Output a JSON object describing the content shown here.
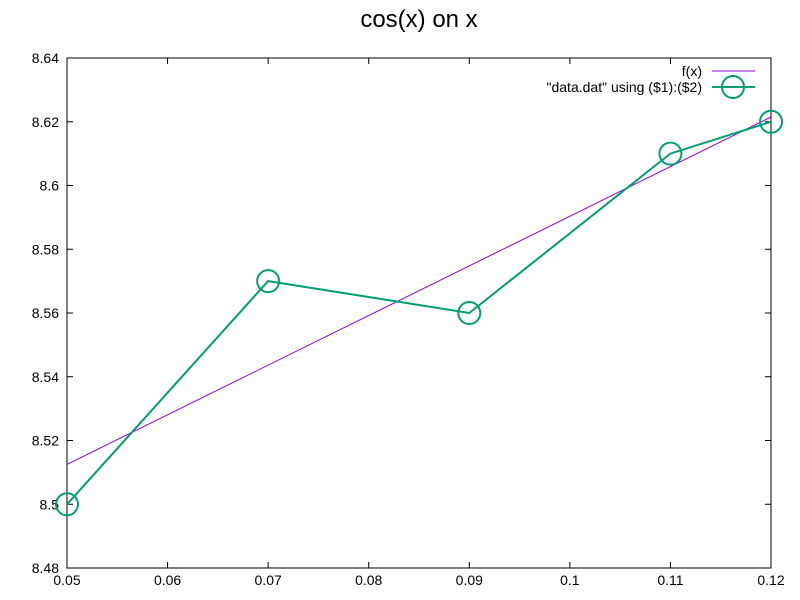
{
  "chart_data": {
    "type": "line",
    "title": "cos(x) on x",
    "xlabel": "",
    "ylabel": "",
    "xlim": [
      0.05,
      0.12
    ],
    "ylim": [
      8.48,
      8.64
    ],
    "xticks": [
      "0.05",
      "0.06",
      "0.07",
      "0.08",
      "0.09",
      "0.1",
      "0.11",
      "0.12"
    ],
    "yticks": [
      "8.48",
      "8.5",
      "8.52",
      "8.54",
      "8.56",
      "8.58",
      "8.6",
      "8.62",
      "8.64"
    ],
    "grid": false,
    "legend_position": "top-right",
    "series": [
      {
        "name": "f(x)",
        "kind": "line",
        "color": "#9400d3",
        "x": [
          0.05,
          0.12
        ],
        "y": [
          8.5125,
          8.6215
        ]
      },
      {
        "name": "\"data.dat\" using ($1):($2)",
        "kind": "linespoints",
        "marker": "circle",
        "color": "#009e73",
        "x": [
          0.05,
          0.07,
          0.09,
          0.11,
          0.12
        ],
        "y": [
          8.5,
          8.57,
          8.56,
          8.61,
          8.62
        ]
      }
    ]
  }
}
